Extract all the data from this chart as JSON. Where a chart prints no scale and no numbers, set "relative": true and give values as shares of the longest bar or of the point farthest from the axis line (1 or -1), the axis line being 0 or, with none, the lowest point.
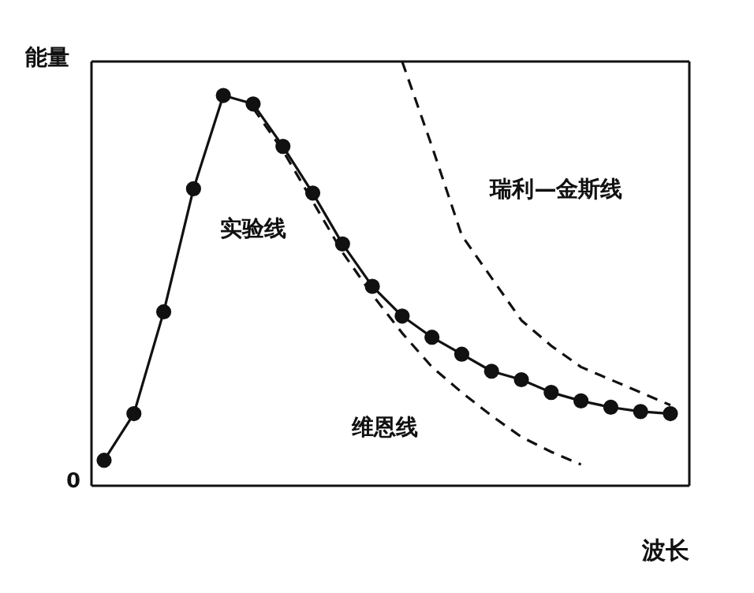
{
  "chart_data": {
    "type": "line",
    "relative": true,
    "xlabel": "波长",
    "ylabel": "能量",
    "annotations": [
      "0"
    ],
    "categories": [
      null,
      null,
      null,
      null,
      null,
      null,
      null,
      null,
      null,
      null,
      null,
      null,
      null,
      null,
      null,
      null,
      null,
      null,
      null,
      null
    ],
    "series": [
      {
        "name": "实验线",
        "color": "#111111",
        "line_style": "solid",
        "marker": "circle",
        "values": [
          0.06,
          0.17,
          0.41,
          0.7,
          0.92,
          0.9,
          0.8,
          0.69,
          0.57,
          0.47,
          0.4,
          0.35,
          0.31,
          0.27,
          0.25,
          0.22,
          0.2,
          0.185,
          0.175,
          0.17
        ]
      },
      {
        "name": "维恩线",
        "color": "#111111",
        "line_style": "dashed",
        "values": [
          null,
          null,
          null,
          null,
          null,
          0.89,
          0.79,
          0.67,
          0.55,
          0.45,
          0.36,
          0.28,
          0.22,
          0.165,
          0.115,
          0.08,
          0.05,
          null,
          null,
          null
        ]
      },
      {
        "name": "瑞利—金斯线",
        "color": "#111111",
        "line_style": "dashed",
        "values": [
          null,
          null,
          null,
          null,
          null,
          null,
          null,
          null,
          null,
          null,
          1,
          0.8,
          0.59,
          0.49,
          0.39,
          0.33,
          0.28,
          0.25,
          0.22,
          0.19
        ]
      }
    ]
  }
}
